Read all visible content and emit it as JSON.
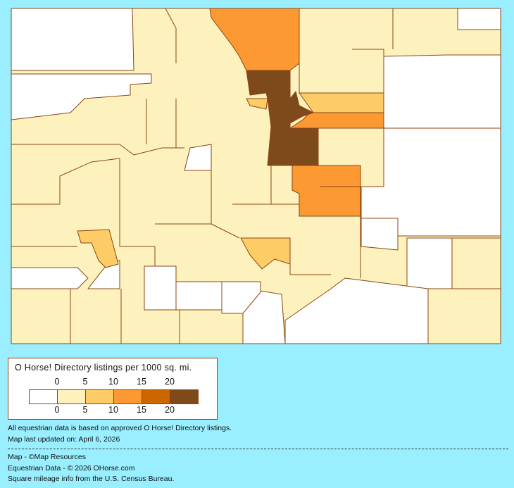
{
  "map": {
    "region": "Colorado counties",
    "border_color": "#8b4513",
    "legend": {
      "title": "O Horse! Directory listings per 1000 sq. mi.",
      "ticks": [
        "0",
        "5",
        "10",
        "15",
        "20"
      ],
      "colors": [
        "#ffffff",
        "#fdf2bd",
        "#fdcc66",
        "#fd9933",
        "#cc6600",
        "#7f4a1b"
      ]
    }
  },
  "notes": {
    "line1": "All equestrian data is based on approved O Horse! Directory listings.",
    "line2": "Map last updated on: April 6, 2026",
    "credit1": "Map - ©Map Resources",
    "credit2": "Equestrian Data - © 2026 OHorse.com",
    "credit3": "Square mileage info from the U.S. Census Bureau."
  }
}
